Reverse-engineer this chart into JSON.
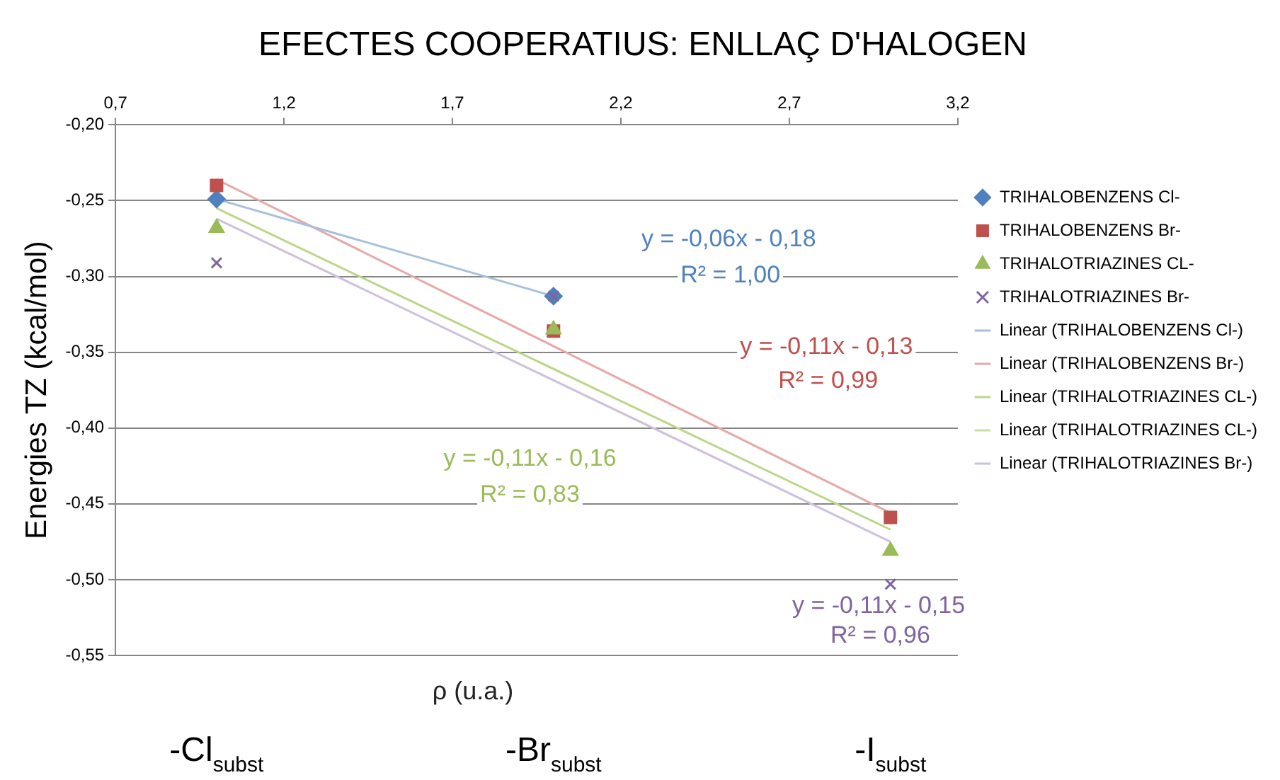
{
  "chart_data": {
    "type": "scatter",
    "title": "EFECTES COOPERATIUS: ENLLAÇ D'HALOGEN",
    "xlabel": "ρ (u.a.)",
    "ylabel": "Energies TZ (kcal/mol)",
    "x": [
      1,
      2,
      3
    ],
    "series": [
      {
        "name": "TRIHALOBENZENS Cl-",
        "color": "#4f81bd",
        "marker": "diamond",
        "x": [
          1,
          2
        ],
        "values": [
          -0.249,
          -0.313
        ]
      },
      {
        "name": "TRIHALOBENZENS Br-",
        "color": "#c0504d",
        "marker": "square",
        "values": [
          -0.24,
          -0.336,
          -0.459
        ]
      },
      {
        "name": "TRIHALOTRIAZINES CL-",
        "color": "#9bbb59",
        "marker": "triangle",
        "values": [
          -0.268,
          -0.335,
          -0.481
        ]
      },
      {
        "name": "TRIHALOTRIAZINES Br-",
        "color": "#8064a2",
        "marker": "cross",
        "values": [
          -0.291,
          -0.313,
          -0.503
        ]
      },
      {
        "name": "Linear (TRIHALOBENZENS Cl-)",
        "type": "line",
        "color": "#a7c0de",
        "marker": "none",
        "x": [
          1,
          2
        ],
        "values": [
          -0.249,
          -0.313
        ]
      },
      {
        "name": "Linear (TRIHALOBENZENS Br-)",
        "type": "line",
        "color": "#e6a9a7",
        "marker": "none",
        "x": [
          1,
          3
        ],
        "values": [
          -0.236,
          -0.456
        ]
      },
      {
        "name": "Linear (TRIHALOTRIAZINES CL-)",
        "type": "line",
        "color": "#bcd58a",
        "marker": "none",
        "x": [
          1,
          3
        ],
        "values": [
          -0.255,
          -0.467
        ]
      },
      {
        "name": "Linear (TRIHALOTRIAZINES CL-)",
        "type": "line",
        "color": "#cddda8",
        "marker": "none",
        "values": [
          null,
          null,
          null
        ]
      },
      {
        "name": "Linear (TRIHALOTRIAZINES Br-)",
        "type": "line",
        "color": "#cdc1dd",
        "marker": "none",
        "x": [
          1,
          3
        ],
        "values": [
          -0.262,
          -0.475
        ]
      }
    ],
    "xlim": [
      0.7,
      3.2
    ],
    "xticks": [
      {
        "value": 0.7,
        "label": "0,7"
      },
      {
        "value": 1.2,
        "label": "1,2"
      },
      {
        "value": 1.7,
        "label": "1,7"
      },
      {
        "value": 2.2,
        "label": "2,2"
      },
      {
        "value": 2.7,
        "label": "2,7"
      },
      {
        "value": 3.2,
        "label": "3,2"
      }
    ],
    "ylim": [
      -0.55,
      -0.2
    ],
    "yticks": [
      {
        "value": -0.2,
        "label": "-0,20"
      },
      {
        "value": -0.25,
        "label": "-0,25"
      },
      {
        "value": -0.3,
        "label": "-0,30"
      },
      {
        "value": -0.35,
        "label": "-0,35"
      },
      {
        "value": -0.4,
        "label": "-0,40"
      },
      {
        "value": -0.45,
        "label": "-0,45"
      },
      {
        "value": -0.5,
        "label": "-0,50"
      },
      {
        "value": -0.55,
        "label": "-0,55"
      }
    ],
    "grid": "y",
    "legend": "right",
    "annotations": [
      "y = -0,06x - 0,18",
      "R² = 1,00",
      "y = -0,11x - 0,13",
      "R² = 0,99",
      "y = -0,11x - 0,16",
      "R² = 0,83",
      "y = -0,11x - 0,15",
      "R² = 0,96",
      "-Cl$_{subst}$",
      "-Br$_{subst}$",
      "-I$_{subst}$"
    ]
  }
}
